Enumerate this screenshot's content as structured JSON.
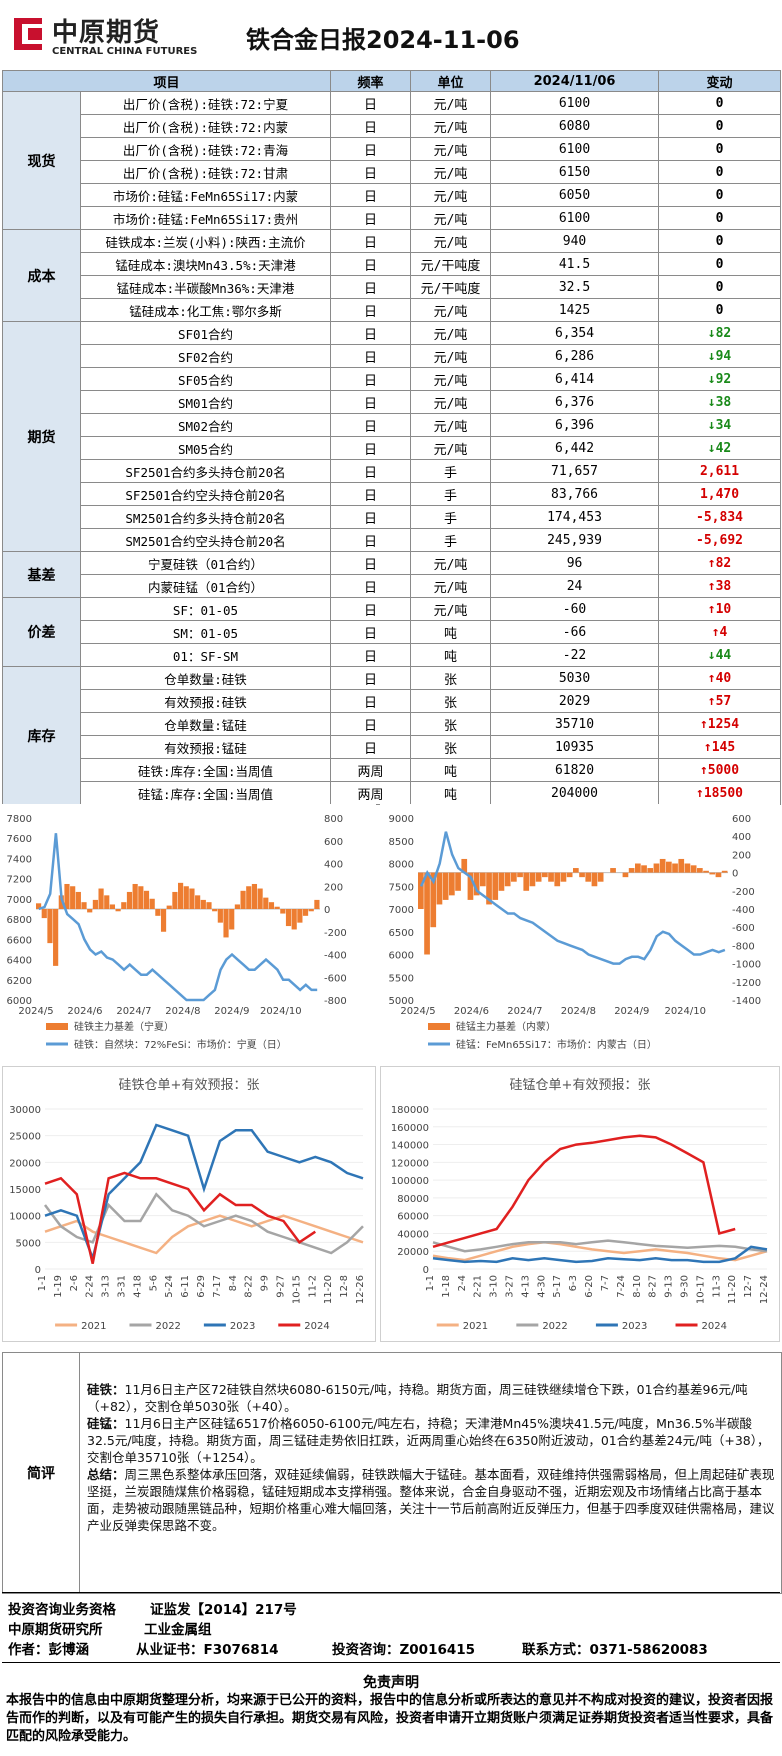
{
  "header": {
    "logo_cn": "中原期货",
    "logo_en": "CENTRAL CHINA FUTURES",
    "title": "铁合金日报2024-11-06",
    "brand_color": "#c8102e"
  },
  "table": {
    "columns": [
      "项目",
      "频率",
      "单位",
      "2024/11/06",
      "变动"
    ],
    "groups": [
      {
        "name": "现货",
        "rows": [
          {
            "item": "出厂价(含税):硅铁:72:宁夏",
            "freq": "日",
            "unit": "元/吨",
            "value": "6100",
            "chg": "0",
            "dir": ""
          },
          {
            "item": "出厂价(含税):硅铁:72:内蒙",
            "freq": "日",
            "unit": "元/吨",
            "value": "6080",
            "chg": "0",
            "dir": ""
          },
          {
            "item": "出厂价(含税):硅铁:72:青海",
            "freq": "日",
            "unit": "元/吨",
            "value": "6100",
            "chg": "0",
            "dir": ""
          },
          {
            "item": "出厂价(含税):硅铁:72:甘肃",
            "freq": "日",
            "unit": "元/吨",
            "value": "6150",
            "chg": "0",
            "dir": ""
          },
          {
            "item": "市场价:硅锰:FeMn65Si17:内蒙",
            "freq": "日",
            "unit": "元/吨",
            "value": "6050",
            "chg": "0",
            "dir": ""
          },
          {
            "item": "市场价:硅锰:FeMn65Si17:贵州",
            "freq": "日",
            "unit": "元/吨",
            "value": "6100",
            "chg": "0",
            "dir": ""
          }
        ]
      },
      {
        "name": "成本",
        "rows": [
          {
            "item": "硅铁成本:兰炭(小料):陕西:主流价",
            "freq": "日",
            "unit": "元/吨",
            "value": "940",
            "chg": "0",
            "dir": ""
          },
          {
            "item": "锰硅成本:澳块Mn43.5%:天津港",
            "freq": "日",
            "unit": "元/干吨度",
            "value": "41.5",
            "chg": "0",
            "dir": ""
          },
          {
            "item": "锰硅成本:半碳酸Mn36%:天津港",
            "freq": "日",
            "unit": "元/干吨度",
            "value": "32.5",
            "chg": "0",
            "dir": ""
          },
          {
            "item": "锰硅成本:化工焦:鄂尔多斯",
            "freq": "日",
            "unit": "元/吨",
            "value": "1425",
            "chg": "0",
            "dir": ""
          }
        ]
      },
      {
        "name": "期货",
        "rows": [
          {
            "item": "SF01合约",
            "freq": "日",
            "unit": "元/吨",
            "value": "6,354",
            "chg": "82",
            "dir": "down"
          },
          {
            "item": "SF02合约",
            "freq": "日",
            "unit": "元/吨",
            "value": "6,286",
            "chg": "94",
            "dir": "down"
          },
          {
            "item": "SF05合约",
            "freq": "日",
            "unit": "元/吨",
            "value": "6,414",
            "chg": "92",
            "dir": "down"
          },
          {
            "item": "SM01合约",
            "freq": "日",
            "unit": "元/吨",
            "value": "6,376",
            "chg": "38",
            "dir": "down"
          },
          {
            "item": "SM02合约",
            "freq": "日",
            "unit": "元/吨",
            "value": "6,396",
            "chg": "34",
            "dir": "down"
          },
          {
            "item": "SM05合约",
            "freq": "日",
            "unit": "元/吨",
            "value": "6,442",
            "chg": "42",
            "dir": "down"
          },
          {
            "item": "SF2501合约多头持仓前20名",
            "freq": "日",
            "unit": "手",
            "value": "71,657",
            "chg": "2,611",
            "dir": "pos"
          },
          {
            "item": "SF2501合约空头持仓前20名",
            "freq": "日",
            "unit": "手",
            "value": "83,766",
            "chg": "1,470",
            "dir": "pos"
          },
          {
            "item": "SM2501合约多头持仓前20名",
            "freq": "日",
            "unit": "手",
            "value": "174,453",
            "chg": "-5,834",
            "dir": "neg"
          },
          {
            "item": "SM2501合约空头持仓前20名",
            "freq": "日",
            "unit": "手",
            "value": "245,939",
            "chg": "-5,692",
            "dir": "neg"
          }
        ]
      },
      {
        "name": "基差",
        "rows": [
          {
            "item": "宁夏硅铁（01合约）",
            "freq": "日",
            "unit": "元/吨",
            "value": "96",
            "chg": "82",
            "dir": "up"
          },
          {
            "item": "内蒙硅锰（01合约）",
            "freq": "日",
            "unit": "元/吨",
            "value": "24",
            "chg": "38",
            "dir": "up"
          }
        ]
      },
      {
        "name": "价差",
        "rows": [
          {
            "item": "SF：01-05",
            "freq": "日",
            "unit": "元/吨",
            "value": "-60",
            "chg": "10",
            "dir": "up"
          },
          {
            "item": "SM：01-05",
            "freq": "日",
            "unit": "吨",
            "value": "-66",
            "chg": "4",
            "dir": "up"
          },
          {
            "item": "01：SF-SM",
            "freq": "日",
            "unit": "吨",
            "value": "-22",
            "chg": "44",
            "dir": "down"
          }
        ]
      },
      {
        "name": "库存",
        "rows": [
          {
            "item": "仓单数量:硅铁",
            "freq": "日",
            "unit": "张",
            "value": "5030",
            "chg": "40",
            "dir": "up"
          },
          {
            "item": "有效预报:硅铁",
            "freq": "日",
            "unit": "张",
            "value": "2029",
            "chg": "57",
            "dir": "up"
          },
          {
            "item": "仓单数量:锰硅",
            "freq": "日",
            "unit": "张",
            "value": "35710",
            "chg": "1254",
            "dir": "up"
          },
          {
            "item": "有效预报:锰硅",
            "freq": "日",
            "unit": "张",
            "value": "10935",
            "chg": "145",
            "dir": "up"
          },
          {
            "item": "硅铁:库存:全国:当周值",
            "freq": "两周",
            "unit": "吨",
            "value": "61820",
            "chg": "5000",
            "dir": "up"
          },
          {
            "item": "硅锰:库存:全国:当周值",
            "freq": "两周",
            "unit": "吨",
            "value": "204000",
            "chg": "18500",
            "dir": "up"
          }
        ]
      }
    ]
  },
  "chart_data": [
    {
      "type": "line",
      "title": "",
      "x_ticks": [
        "2024/5",
        "2024/6",
        "2024/7",
        "2024/8",
        "2024/9",
        "2024/10"
      ],
      "y_left_ticks": [
        "6000",
        "6200",
        "6400",
        "6600",
        "6800",
        "7000",
        "7200",
        "7400",
        "7600",
        "7800"
      ],
      "y_right_ticks": [
        "-800",
        "-600",
        "-400",
        "-200",
        "0",
        "200",
        "400",
        "600",
        "800"
      ],
      "ylim_left": [
        6000,
        7800
      ],
      "ylim_right": [
        -800,
        800
      ],
      "series": [
        {
          "name": "硅铁主力基差（宁夏）",
          "axis": "right",
          "style": "bar",
          "color": "#ed7d31",
          "values": [
            50,
            -80,
            -300,
            -500,
            120,
            220,
            200,
            150,
            60,
            -30,
            80,
            180,
            120,
            40,
            -20,
            60,
            150,
            220,
            200,
            160,
            90,
            -60,
            -200,
            30,
            150,
            230,
            200,
            180,
            120,
            80,
            60,
            -20,
            -120,
            -250,
            -180,
            40,
            160,
            200,
            220,
            180,
            100,
            60,
            20,
            -40,
            -150,
            -180,
            -120,
            -60,
            -20,
            80
          ]
        },
        {
          "name": "硅铁：自然块：72%FeSi：市场价：宁夏（日）",
          "axis": "left",
          "style": "line",
          "color": "#5b9bd5",
          "values": [
            6900,
            6920,
            7050,
            7650,
            7000,
            6850,
            6800,
            6750,
            6600,
            6500,
            6450,
            6480,
            6420,
            6400,
            6350,
            6300,
            6350,
            6300,
            6250,
            6250,
            6300,
            6250,
            6200,
            6150,
            6100,
            6050,
            6000,
            6000,
            6000,
            6000,
            6050,
            6100,
            6300,
            6400,
            6450,
            6400,
            6350,
            6300,
            6300,
            6350,
            6400,
            6350,
            6300,
            6200,
            6200,
            6150,
            6100,
            6150,
            6100,
            6100
          ]
        }
      ]
    },
    {
      "type": "line",
      "title": "",
      "x_ticks": [
        "2024/5",
        "2024/6",
        "2024/7",
        "2024/8",
        "2024/9",
        "2024/10"
      ],
      "y_left_ticks": [
        "5000",
        "5500",
        "6000",
        "6500",
        "7000",
        "7500",
        "8000",
        "8500",
        "9000"
      ],
      "y_right_ticks": [
        "-1400",
        "-1200",
        "-1000",
        "-800",
        "-600",
        "-400",
        "-200",
        "0",
        "200",
        "400",
        "600"
      ],
      "ylim_left": [
        5000,
        9000
      ],
      "ylim_right": [
        -1400,
        600
      ],
      "series": [
        {
          "name": "硅锰主力基差（内蒙）",
          "axis": "right",
          "style": "bar",
          "color": "#ed7d31",
          "values": [
            -400,
            -900,
            -600,
            -350,
            -300,
            -250,
            -200,
            150,
            -300,
            -250,
            -150,
            -350,
            -300,
            -200,
            -150,
            -100,
            -50,
            -200,
            -150,
            -100,
            -50,
            -100,
            -150,
            -100,
            -50,
            50,
            -50,
            -100,
            -150,
            -100,
            0,
            50,
            0,
            -50,
            50,
            100,
            80,
            50,
            100,
            150,
            120,
            100,
            150,
            100,
            80,
            50,
            20,
            -20,
            -50,
            20
          ]
        },
        {
          "name": "硅锰：FeMn65Si17：市场价：内蒙古（日）",
          "axis": "left",
          "style": "line",
          "color": "#5b9bd5",
          "values": [
            7500,
            7800,
            7600,
            8000,
            8700,
            8200,
            7900,
            7800,
            7700,
            7400,
            7300,
            7200,
            7100,
            7000,
            6900,
            6900,
            6800,
            6750,
            6700,
            6600,
            6500,
            6400,
            6300,
            6250,
            6200,
            6150,
            6100,
            6000,
            5950,
            5900,
            5850,
            5800,
            5800,
            5900,
            5950,
            5950,
            5900,
            6100,
            6400,
            6500,
            6450,
            6300,
            6200,
            6100,
            6000,
            6000,
            6050,
            6100,
            6050,
            6100
          ]
        }
      ]
    },
    {
      "type": "line",
      "title": "硅铁仓单+有效预报：张",
      "x_ticks": [
        "1-1",
        "1-19",
        "2-6",
        "2-24",
        "3-13",
        "3-31",
        "4-18",
        "5-6",
        "5-24",
        "6-11",
        "6-29",
        "7-17",
        "8-4",
        "8-22",
        "9-9",
        "9-27",
        "10-15",
        "11-2",
        "11-20",
        "12-8",
        "12-26"
      ],
      "y_ticks": [
        "0",
        "5000",
        "10000",
        "15000",
        "20000",
        "25000",
        "30000"
      ],
      "ylim": [
        0,
        30000
      ],
      "series": [
        {
          "name": "2021",
          "color": "#f4b183",
          "values": [
            7000,
            8000,
            9000,
            7000,
            6000,
            5000,
            4000,
            3000,
            6000,
            8000,
            9000,
            10000,
            9000,
            8000,
            9000,
            10000,
            9000,
            8000,
            7000,
            6000,
            5000
          ]
        },
        {
          "name": "2022",
          "color": "#a5a5a5",
          "values": [
            12000,
            8000,
            6000,
            5000,
            12000,
            9000,
            9000,
            14000,
            11000,
            10000,
            8000,
            9000,
            10000,
            9000,
            7000,
            6000,
            5000,
            4000,
            3000,
            5000,
            8000
          ]
        },
        {
          "name": "2023",
          "color": "#2e75b6",
          "values": [
            10000,
            11000,
            10000,
            2000,
            14000,
            17000,
            20000,
            27000,
            26000,
            25000,
            15000,
            24000,
            26000,
            26000,
            22000,
            21000,
            20000,
            21000,
            20000,
            18000,
            17000
          ]
        },
        {
          "name": "2024",
          "color": "#e02020",
          "values": [
            16000,
            17000,
            14000,
            1000,
            17000,
            18000,
            17000,
            17000,
            16000,
            15000,
            11000,
            14000,
            12000,
            12000,
            10000,
            9000,
            5000,
            7000,
            null,
            null,
            null
          ]
        }
      ]
    },
    {
      "type": "line",
      "title": "硅锰仓单+有效预报：张",
      "x_ticks": [
        "1-1",
        "1-18",
        "2-4",
        "2-21",
        "3-10",
        "3-27",
        "4-13",
        "4-30",
        "5-17",
        "6-3",
        "6-20",
        "7-7",
        "7-24",
        "8-10",
        "8-27",
        "9-13",
        "9-30",
        "10-17",
        "11-3",
        "11-20",
        "12-7",
        "12-24"
      ],
      "y_ticks": [
        "0",
        "20000",
        "40000",
        "60000",
        "80000",
        "100000",
        "120000",
        "140000",
        "160000",
        "180000"
      ],
      "ylim": [
        0,
        180000
      ],
      "series": [
        {
          "name": "2021",
          "color": "#f4b183",
          "values": [
            15000,
            12000,
            10000,
            15000,
            20000,
            25000,
            28000,
            30000,
            28000,
            25000,
            22000,
            20000,
            18000,
            20000,
            22000,
            20000,
            18000,
            15000,
            12000,
            10000,
            15000,
            20000
          ]
        },
        {
          "name": "2022",
          "color": "#a5a5a5",
          "values": [
            30000,
            25000,
            20000,
            22000,
            25000,
            28000,
            30000,
            30000,
            30000,
            28000,
            30000,
            32000,
            30000,
            28000,
            26000,
            25000,
            24000,
            25000,
            26000,
            25000,
            22000,
            20000
          ]
        },
        {
          "name": "2023",
          "color": "#2e75b6",
          "values": [
            12000,
            10000,
            8000,
            9000,
            8000,
            12000,
            10000,
            12000,
            10000,
            8000,
            9000,
            12000,
            11000,
            10000,
            12000,
            10000,
            10000,
            8000,
            8000,
            12000,
            25000,
            22000
          ]
        },
        {
          "name": "2024",
          "color": "#e02020",
          "values": [
            25000,
            30000,
            35000,
            40000,
            45000,
            70000,
            100000,
            120000,
            135000,
            140000,
            142000,
            145000,
            148000,
            150000,
            148000,
            140000,
            130000,
            120000,
            40000,
            45000,
            null,
            null
          ]
        }
      ]
    }
  ],
  "legend": {
    "c1": [
      "硅铁主力基差（宁夏）",
      "硅铁：自然块：72%FeSi：市场价：宁夏（日）"
    ],
    "c2": [
      "硅锰主力基差（内蒙）",
      "硅锰：FeMn65Si17：市场价：内蒙古（日）"
    ]
  },
  "comment": {
    "label": "简评",
    "p1_head": "硅铁：",
    "p1": "11月6日主产区72硅铁自然块6080-6150元/吨，持稳。期货方面，周三硅铁继续增仓下跌，01合约基差96元/吨（+82），交割仓单5030张（+40）。",
    "p2_head": "硅锰：",
    "p2": "11月6日主产区硅锰6517价格6050-6100元/吨左右，持稳；天津港Mn45%澳块41.5元/吨度，Mn36.5%半碳酸32.5元/吨度，持稳。期货方面，周三锰硅走势依旧扛跌，近两周重心始终在6350附近波动，01合约基差24元/吨（+38），交割仓单35710张（+1254）。",
    "p3_head": "总结：",
    "p3": "周三黑色系整体承压回落，双硅延续偏弱，硅铁跌幅大于锰硅。基本面看，双硅维持供强需弱格局，但上周起硅矿表现坚挺，兰炭跟随煤焦价格弱稳，锰硅短期成本支撑稍强。整体来说，合金自身驱动不强，近期宏观及市场情绪占比高于基本面，走势被动跟随黑链品种，短期价格重心难大幅回落，关注十一节后前高附近反弹压力，但基于四季度双硅供需格局，建议产业反弹卖保思路不变。"
  },
  "footer": {
    "line1_a": "投资咨询业务资格",
    "line1_b": "证监发【2014】217号",
    "line2_a": "中原期货研究所",
    "line2_b": "工业金属组",
    "author": "作者：彭博涵",
    "cert": "从业证书：F3076814",
    "consult": "投资咨询：Z0016415",
    "contact": "联系方式：0371-58620083",
    "disclaimer_title": "免责声明",
    "disclaimer": "本报告中的信息由中原期货整理分析，均来源于已公开的资料，报告中的信息分析或所表达的意见并不构成对投资的建议，投资者因报告而作的判断，以及有可能产生的损失自行承担。期货交易有风险，投资者申请开立期货账户须满足证券期货投资者适当性要求，具备匹配的风险承受能力。"
  }
}
